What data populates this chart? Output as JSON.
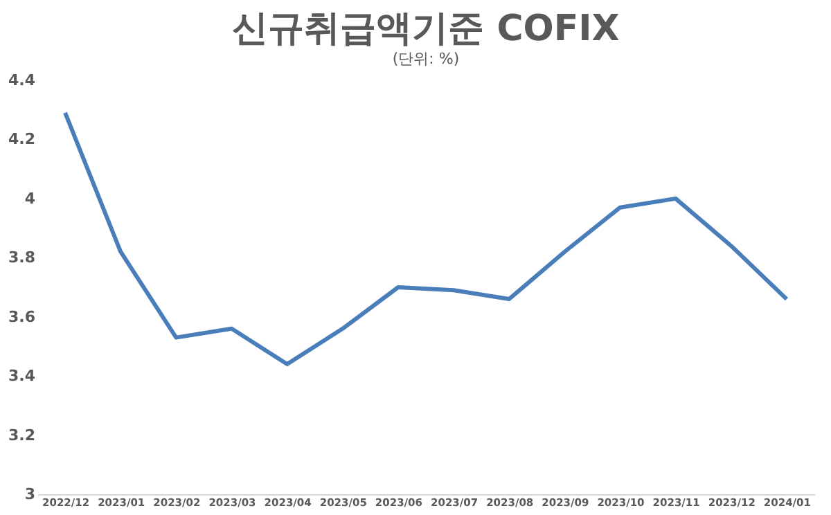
{
  "chart_data": {
    "type": "line",
    "title": "신규취급액기준 COFIX",
    "subtitle": "(단위: %)",
    "categories": [
      "2022/12",
      "2023/01",
      "2023/02",
      "2023/03",
      "2023/04",
      "2023/05",
      "2023/06",
      "2023/07",
      "2023/08",
      "2023/09",
      "2023/10",
      "2023/11",
      "2023/12",
      "2024/01"
    ],
    "series": [
      {
        "color": "#4a7ebb",
        "values": [
          4.29,
          3.82,
          3.53,
          3.56,
          3.44,
          3.56,
          3.7,
          3.69,
          3.66,
          3.82,
          3.97,
          4.0,
          3.84,
          3.66
        ]
      }
    ],
    "ylim": [
      3,
      4.4
    ],
    "yticks": [
      3,
      3.2,
      3.4,
      3.6,
      3.8,
      4,
      4.2,
      4.4
    ],
    "grid": false,
    "marker": "none",
    "line_style": "solid"
  }
}
